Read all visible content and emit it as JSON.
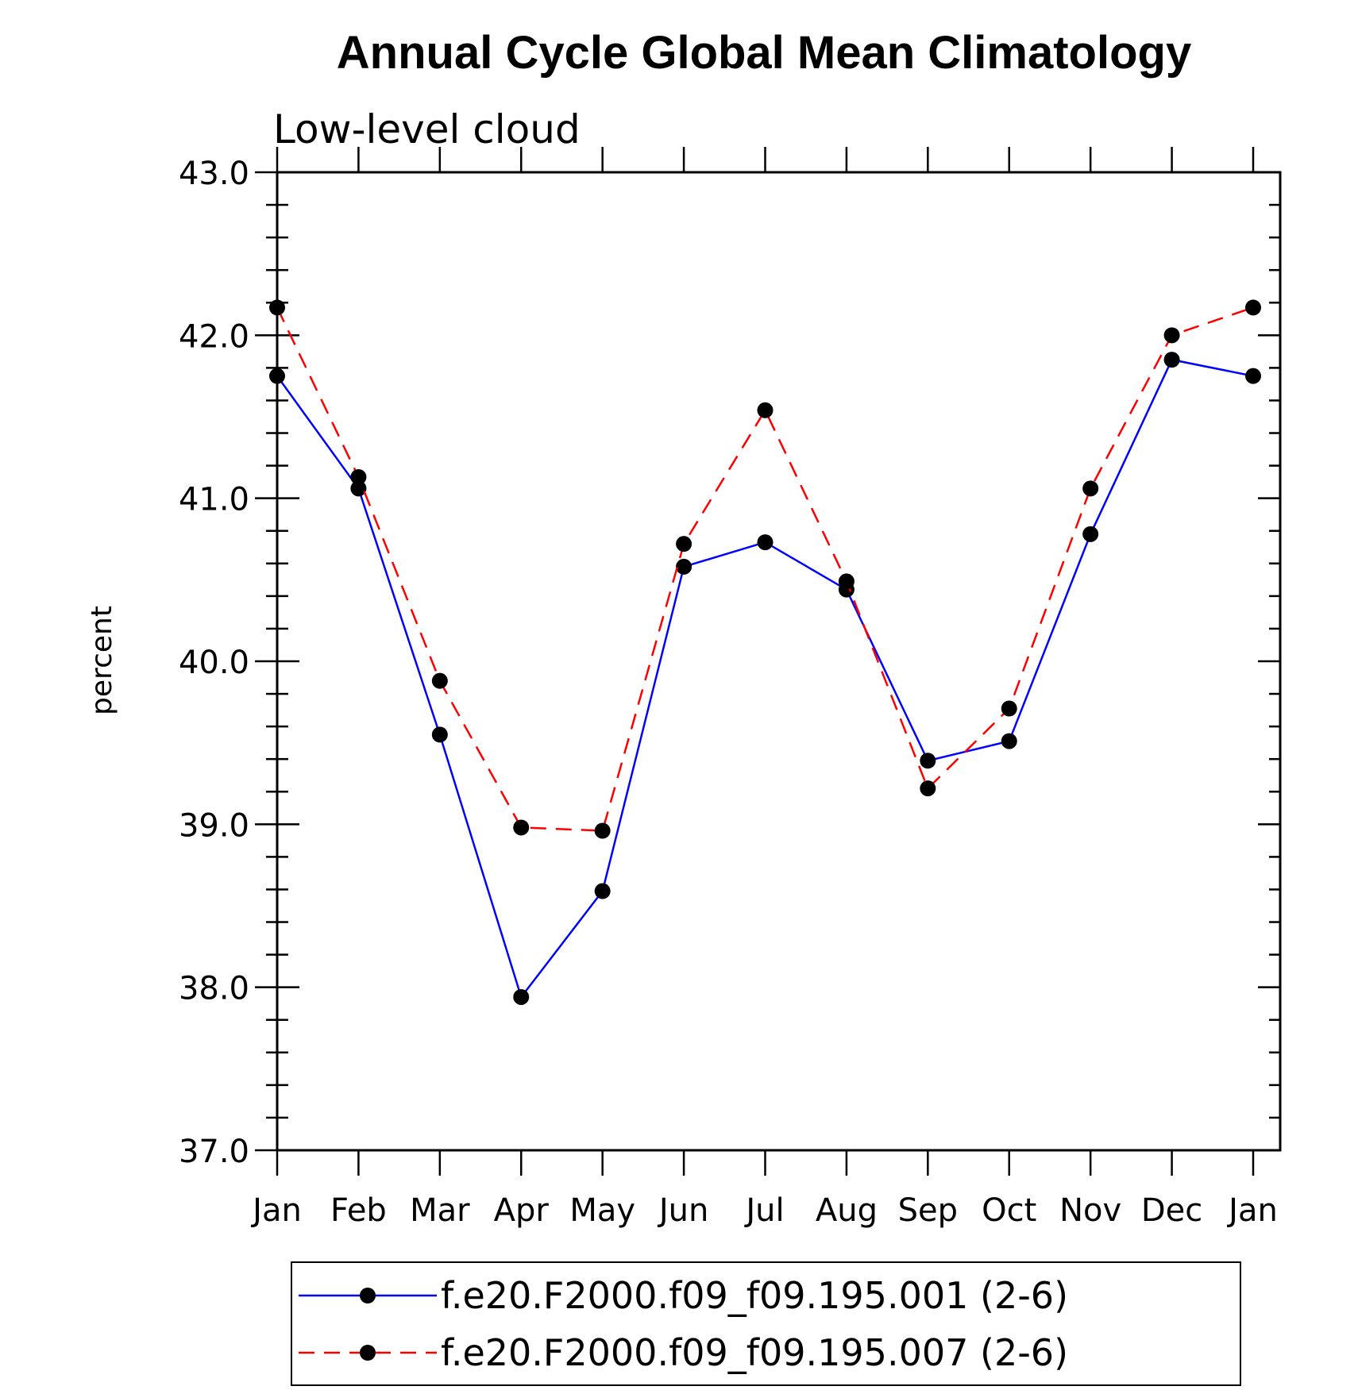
{
  "chart_data": {
    "type": "line",
    "title": "Annual Cycle Global Mean Climatology",
    "subtitle": "Low-level cloud",
    "xlabel": "",
    "ylabel": "percent",
    "categories": [
      "Jan",
      "Feb",
      "Mar",
      "Apr",
      "May",
      "Jun",
      "Jul",
      "Aug",
      "Sep",
      "Oct",
      "Nov",
      "Dec",
      "Jan"
    ],
    "ylim": [
      37.0,
      43.0
    ],
    "yticks": [
      "37.0",
      "38.0",
      "39.0",
      "40.0",
      "41.0",
      "42.0",
      "43.0"
    ],
    "grid": false,
    "legend_position": "bottom",
    "series": [
      {
        "name": "f.e20.F2000.f09_f09.195.001 (2-6)",
        "color": "#0000ff",
        "dash": "solid",
        "values": [
          41.75,
          41.06,
          39.55,
          37.94,
          38.59,
          40.58,
          40.73,
          40.44,
          39.39,
          39.51,
          40.78,
          41.85,
          41.75
        ]
      },
      {
        "name": "f.e20.F2000.f09_f09.195.007 (2-6)",
        "color": "#ff0000",
        "dash": "dashed",
        "values": [
          42.17,
          41.13,
          39.88,
          38.98,
          38.96,
          40.72,
          41.54,
          40.49,
          39.22,
          39.71,
          41.06,
          42.0,
          42.17
        ]
      }
    ]
  }
}
